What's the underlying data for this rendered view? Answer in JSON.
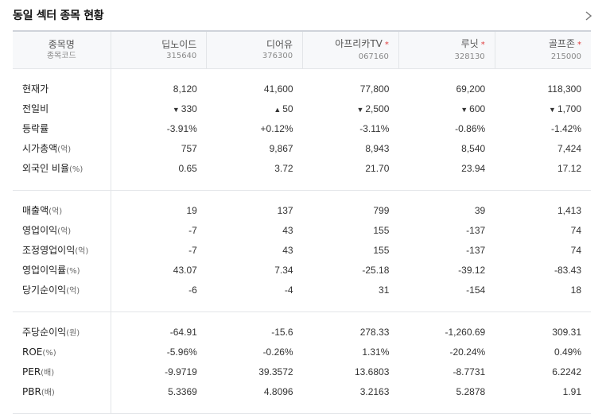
{
  "title": "동일 섹터 종목 현황",
  "header": {
    "name_label": "종목명",
    "code_label": "종목코드",
    "stocks": [
      {
        "name": "딥노이드",
        "code": "315640",
        "starred": false
      },
      {
        "name": "디어유",
        "code": "376300",
        "starred": false
      },
      {
        "name": "아프리카TV",
        "code": "067160",
        "starred": true
      },
      {
        "name": "루닛",
        "code": "328130",
        "starred": true
      },
      {
        "name": "골프존",
        "code": "215000",
        "starred": true
      }
    ],
    "star_symbol": "*"
  },
  "sections": [
    {
      "rows": [
        {
          "label": "현재가",
          "unit": "",
          "values": [
            "8,120",
            "41,600",
            "77,800",
            "69,200",
            "118,300"
          ]
        },
        {
          "label": "전일비",
          "unit": "",
          "values": [
            "330",
            "50",
            "2,500",
            "600",
            "1,700"
          ],
          "directions": [
            "down",
            "up",
            "down",
            "down",
            "down"
          ]
        },
        {
          "label": "등락률",
          "unit": "",
          "values": [
            "-3.91%",
            "+0.12%",
            "-3.11%",
            "-0.86%",
            "-1.42%"
          ],
          "directions": [
            "down",
            "up",
            "down",
            "down",
            "down"
          ]
        },
        {
          "label": "시가총액",
          "unit": "(억)",
          "values": [
            "757",
            "9,867",
            "8,943",
            "8,540",
            "7,424"
          ]
        },
        {
          "label": "외국인 비율",
          "unit": "(%)",
          "values": [
            "0.65",
            "3.72",
            "21.70",
            "23.94",
            "17.12"
          ]
        }
      ]
    },
    {
      "rows": [
        {
          "label": "매출액",
          "unit": "(억)",
          "values": [
            "19",
            "137",
            "799",
            "39",
            "1,413"
          ]
        },
        {
          "label": "영업이익",
          "unit": "(억)",
          "values": [
            "-7",
            "43",
            "155",
            "-137",
            "74"
          ]
        },
        {
          "label": "조정영업이익",
          "unit": "(억)",
          "values": [
            "-7",
            "43",
            "155",
            "-137",
            "74"
          ]
        },
        {
          "label": "영업이익률",
          "unit": "(%)",
          "values": [
            "43.07",
            "7.34",
            "-25.18",
            "-39.12",
            "-83.43"
          ]
        },
        {
          "label": "당기순이익",
          "unit": "(억)",
          "values": [
            "-6",
            "-4",
            "31",
            "-154",
            "18"
          ]
        }
      ]
    },
    {
      "rows": [
        {
          "label": "주당순이익",
          "unit": "(원)",
          "values": [
            "-64.91",
            "-15.6",
            "278.33",
            "-1,260.69",
            "309.31"
          ]
        },
        {
          "label": "ROE",
          "unit": "(%)",
          "values": [
            "-5.96%",
            "-0.26%",
            "1.31%",
            "-20.24%",
            "0.49%"
          ]
        },
        {
          "label": "PER",
          "unit": "(배)",
          "values": [
            "-9.9719",
            "39.3572",
            "13.6803",
            "-8.7731",
            "6.2242"
          ]
        },
        {
          "label": "PBR",
          "unit": "(배)",
          "values": [
            "5.3369",
            "4.8096",
            "3.2163",
            "5.2878",
            "1.91"
          ]
        }
      ]
    }
  ],
  "colors": {
    "up": "#e03c3c",
    "down": "#1e5fd1",
    "border": "#e3e5e8",
    "header_bg": "#f7f8fa"
  },
  "icons": {
    "more": "chevron-right-icon",
    "up": "triangle-up-icon",
    "down": "triangle-down-icon"
  }
}
